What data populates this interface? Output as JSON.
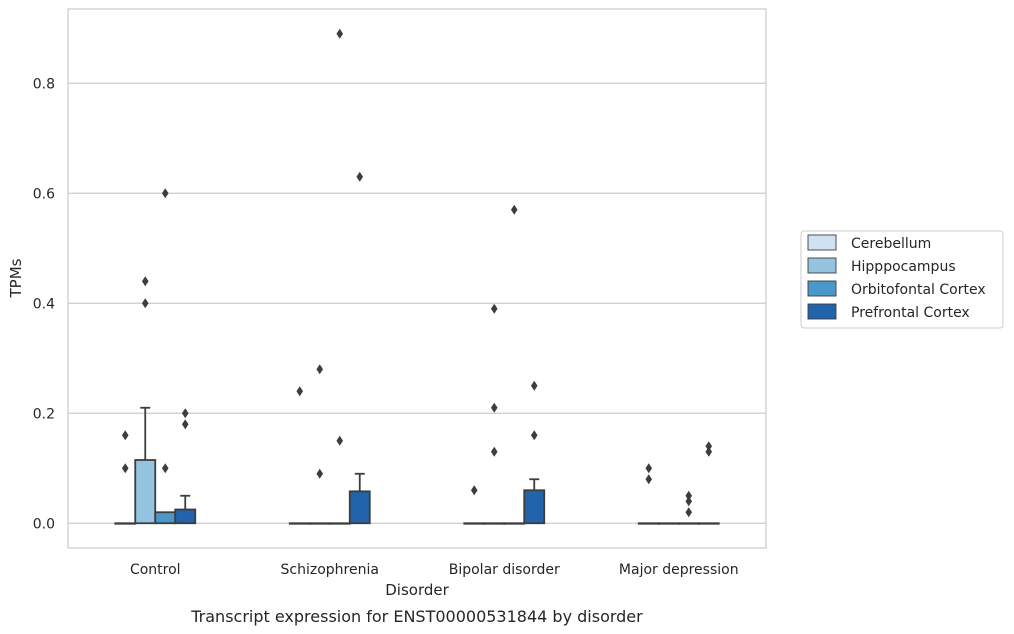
{
  "chart_data": {
    "type": "bar",
    "caption": "Transcript expression for ENST00000531844 by disorder",
    "xlabel": "Disorder",
    "ylabel": "TPMs",
    "ylim": [
      -0.045,
      0.935
    ],
    "yticks": [
      0.0,
      0.2,
      0.4,
      0.6,
      0.8
    ],
    "ytick_labels": [
      "0.0",
      "0.2",
      "0.4",
      "0.6",
      "0.8"
    ],
    "grid": true,
    "legend_position": "right",
    "categories": [
      "Control",
      "Schizophrenia",
      "Bipolar disorder",
      "Major depression"
    ],
    "series": [
      {
        "name": "Cerebellum",
        "color": "#d0e1f2",
        "values": [
          0.0,
          0.0,
          0.0,
          0.0
        ],
        "error_upper": [
          null,
          null,
          null,
          null
        ],
        "outliers": [
          [
            0.16,
            0.1
          ],
          [
            0.24
          ],
          [
            0.06
          ],
          [
            0.1,
            0.08
          ]
        ]
      },
      {
        "name": "Hipppocampus",
        "color": "#94c4df",
        "values": [
          0.115,
          0.0,
          0.0,
          0.0
        ],
        "error_upper": [
          0.21,
          null,
          null,
          null
        ],
        "outliers": [
          [
            0.44,
            0.4
          ],
          [
            0.28,
            0.09
          ],
          [
            0.39,
            0.21,
            0.13
          ],
          []
        ]
      },
      {
        "name": "Orbitofontal Cortex",
        "color": "#4a98c9",
        "values": [
          0.02,
          0.0,
          0.0,
          0.0
        ],
        "error_upper": [
          null,
          null,
          null,
          null
        ],
        "outliers": [
          [
            0.6,
            0.1
          ],
          [
            0.89,
            0.15
          ],
          [
            0.57
          ],
          [
            0.05,
            0.04,
            0.02
          ]
        ]
      },
      {
        "name": "Prefrontal Cortex",
        "color": "#2164ab",
        "values": [
          0.025,
          0.058,
          0.06,
          0.0
        ],
        "error_upper": [
          0.05,
          0.09,
          0.08,
          null
        ],
        "outliers": [
          [
            0.2,
            0.18
          ],
          [
            0.63
          ],
          [
            0.25,
            0.16
          ],
          [
            0.14,
            0.13
          ]
        ]
      }
    ]
  }
}
